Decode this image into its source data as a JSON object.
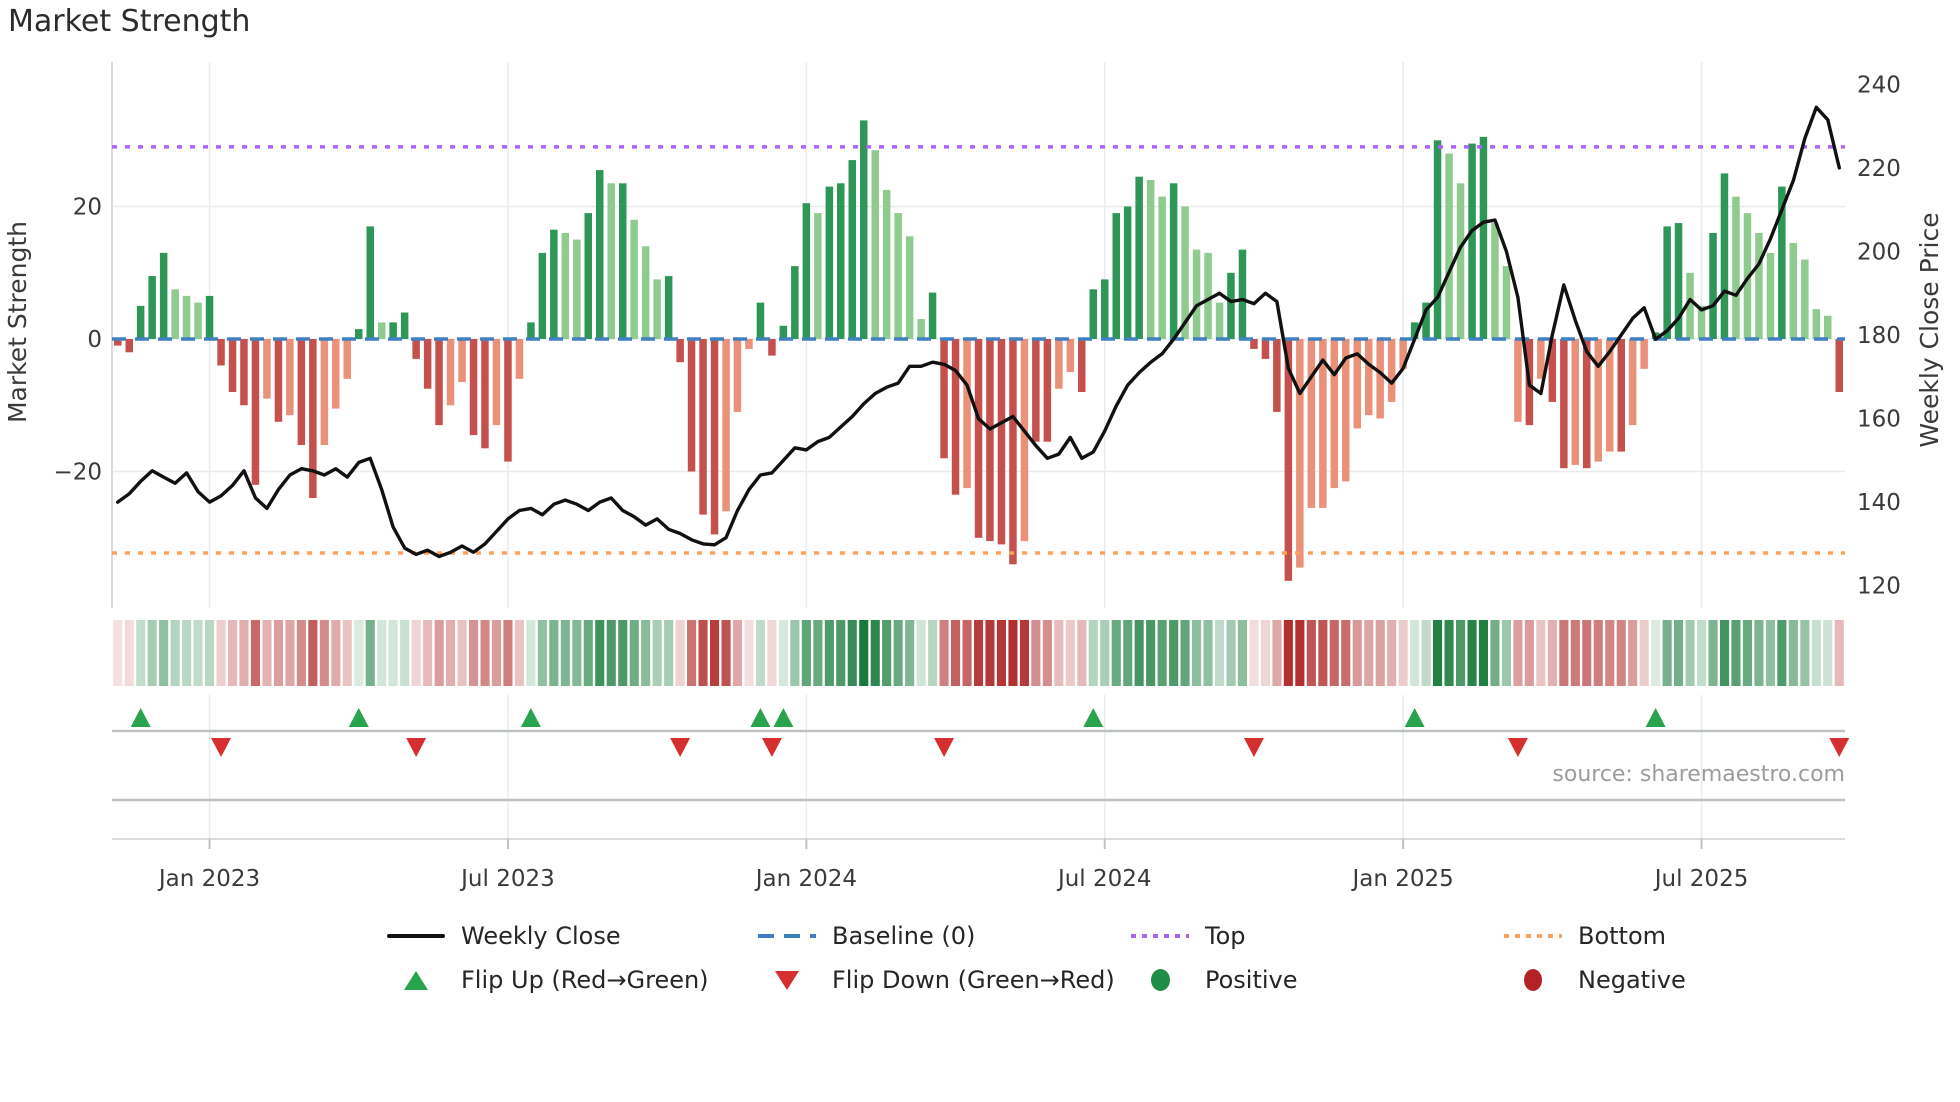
{
  "title": "Market Strength",
  "source": "source: sharemaestro.com",
  "axes": {
    "left": {
      "label": "Market Strength",
      "tick_labels": [
        "20",
        "0",
        "−20"
      ],
      "tick_values": [
        20,
        0,
        -20
      ]
    },
    "right": {
      "label": "Weekly Close Price",
      "tick_labels": [
        "240",
        "220",
        "200",
        "180",
        "160",
        "140",
        "120"
      ],
      "tick_values": [
        240,
        220,
        200,
        180,
        160,
        140,
        120
      ]
    },
    "x": {
      "tick_labels": [
        "Jan 2023",
        "Jul 2023",
        "Jan 2024",
        "Jul 2024",
        "Jan 2025",
        "Jul 2025"
      ],
      "tick_week_index": [
        8,
        34,
        60,
        86,
        112,
        138
      ]
    }
  },
  "legend": {
    "items": [
      {
        "label": "Weekly Close",
        "type": "line",
        "color": "#111111"
      },
      {
        "label": "Baseline (0)",
        "type": "dashed-line",
        "color": "#4080bf"
      },
      {
        "label": "Top",
        "type": "dotted-line",
        "color": "#ab63fa"
      },
      {
        "label": "Bottom",
        "type": "dotted-line",
        "color": "#ffa15a"
      },
      {
        "label": "Flip Up (Red→Green)",
        "type": "triangle-up",
        "color": "#2aa34f"
      },
      {
        "label": "Flip Down (Green→Red)",
        "type": "triangle-down",
        "color": "#d62f2f"
      },
      {
        "label": "Positive",
        "type": "circle",
        "color": "#218c46"
      },
      {
        "label": "Negative",
        "type": "circle",
        "color": "#b22227"
      }
    ]
  },
  "colors": {
    "bar_positive_dark": "#2e9656",
    "bar_positive_light": "#8fca8f",
    "bar_negative_dark": "#c5514e",
    "bar_negative_light": "#ea9179",
    "price_line": "#111111",
    "baseline": "#4080bf",
    "top_line": "#ab63fa",
    "bottom_line": "#ffa15a",
    "flip_up": "#2aa34f",
    "flip_down": "#d62f2f",
    "heat_positive": "#177a3a",
    "heat_negative": "#b23030",
    "grid": "#e9ebef",
    "spine": "#d9dcdf",
    "separator": "#bfc2c4",
    "tick_text": "#3a3a3a"
  },
  "chart_data": {
    "type": "bar",
    "subtype": "weekly strength bars + weekly close line + heatmap strip + flip markers",
    "weeks": 151,
    "baseline": 0,
    "top_line_strength": 29,
    "bottom_line_strength": -32.3,
    "strength_axis_range": [
      -38,
      41.8
    ],
    "price_axis_range": [
      115,
      243
    ],
    "series": [
      {
        "name": "Market Strength",
        "type": "bar",
        "values": [
          -1,
          -2,
          5,
          9.5,
          13,
          7.5,
          6.5,
          5.5,
          6.5,
          -4,
          -8,
          -10,
          -22,
          -9,
          -12.5,
          -11.5,
          -16,
          -24,
          -16,
          -10.5,
          -6,
          1.5,
          17,
          2.5,
          2.5,
          4,
          -3,
          -7.5,
          -13,
          -10,
          -6.5,
          -14.5,
          -16.5,
          -13,
          -18.5,
          -6,
          2.5,
          13,
          16.5,
          16,
          15,
          19,
          25.5,
          23.5,
          23.5,
          18,
          14,
          9,
          9.5,
          -3.5,
          -20,
          -26.5,
          -29.5,
          -26,
          -11,
          -1.5,
          5.5,
          -2.5,
          2,
          11,
          20.5,
          19,
          23,
          23.5,
          27,
          33,
          28.5,
          22.5,
          19,
          15.5,
          3,
          7,
          -18,
          -23.5,
          -22.5,
          -30,
          -30.5,
          -31,
          -34,
          -30.5,
          -15.5,
          -15.5,
          -7.5,
          -5,
          -8,
          7.5,
          9,
          19,
          20,
          24.5,
          24,
          21.5,
          23.5,
          20,
          13.5,
          13,
          5.5,
          10,
          13.5,
          -1.5,
          -3,
          -11,
          -36.5,
          -34.5,
          -25.5,
          -25.5,
          -22.5,
          -21.5,
          -13.5,
          -11.5,
          -12,
          -9.5,
          -4.5,
          2.5,
          5.5,
          30,
          28,
          23.5,
          29.5,
          30.5,
          17.5,
          11,
          -12.5,
          -13,
          -6,
          -9.5,
          -19.5,
          -19,
          -19.5,
          -18.5,
          -17,
          -17,
          -13,
          -4.5,
          1,
          17,
          17.5,
          10,
          5,
          16,
          25,
          21.5,
          19,
          16,
          13,
          23,
          14.5,
          12,
          4.5,
          3.5,
          -8
        ]
      },
      {
        "name": "Weekly Close",
        "type": "line",
        "values": [
          140,
          142,
          145,
          147.5,
          146,
          144.5,
          147,
          142.5,
          140,
          141.5,
          144,
          147.5,
          141,
          138.5,
          143,
          146.5,
          148,
          147.5,
          146.5,
          148,
          146,
          149.5,
          150.5,
          143,
          134,
          129,
          127.5,
          128.5,
          127,
          128,
          129.5,
          128,
          130,
          133,
          136,
          138,
          138.5,
          137,
          139.5,
          140.5,
          139.5,
          138,
          140,
          141,
          138,
          136.5,
          134.5,
          136,
          133.5,
          132.5,
          131,
          130,
          129.8,
          131.5,
          138,
          143,
          146.5,
          147,
          150,
          153,
          152.5,
          154.5,
          155.5,
          158,
          160.5,
          163.5,
          166,
          167.5,
          168.5,
          172.5,
          172.5,
          173.5,
          173,
          171.5,
          168,
          160,
          157.5,
          159,
          160.5,
          157,
          153.5,
          150.5,
          151.5,
          155.5,
          150.5,
          152,
          157,
          163,
          168,
          171,
          173.5,
          175.5,
          179,
          183,
          187,
          188.5,
          190,
          188,
          188.5,
          187.5,
          190,
          188,
          172,
          166,
          170,
          174,
          170.5,
          174.5,
          175.5,
          173,
          171,
          168.5,
          172,
          179,
          186,
          189,
          195,
          201,
          205,
          207,
          207.5,
          200,
          189,
          168,
          166,
          180,
          192,
          183.5,
          176,
          172.5,
          176,
          180,
          184,
          186.5,
          179,
          181,
          184,
          188.5,
          186,
          187,
          190.5,
          189.5,
          193.5,
          197,
          203,
          210,
          217,
          227,
          234.5,
          231.5,
          220
        ]
      }
    ],
    "bar_shade_pattern": "dddddlllddddd ldlddlllddlddddd llddldlddd llddldllld ddddllldddddl ddddllllld ddlddddlddlldd ddddlldllllddd dddllllllll lldddlldd llldlddldlldllddd lldd lllldlllld",
    "bar_shades": "dddddllldddddldlddllldd lddddd llddldlddd llddldllld d",
    "bar_shade": "dddddllldddddldlddlllddlddddd lldd",
    "shades": "dddddllldd dddldlddll lddldddddl lddldldddl lddldllldd dddllldddd dlddddllll ldddlddddl ddlldddddd lldllllddd dddlllllll llldddlldd llldlddldl ldlldddlld dlllldlllld",
    "flip_up_weeks": [
      2,
      21,
      36,
      56,
      58,
      85,
      113,
      134
    ],
    "flip_down_weeks": [
      9,
      26,
      49,
      57,
      72,
      99,
      122,
      150
    ],
    "heatmap": "mirrors Market Strength bar values as red-green intensity strip"
  }
}
